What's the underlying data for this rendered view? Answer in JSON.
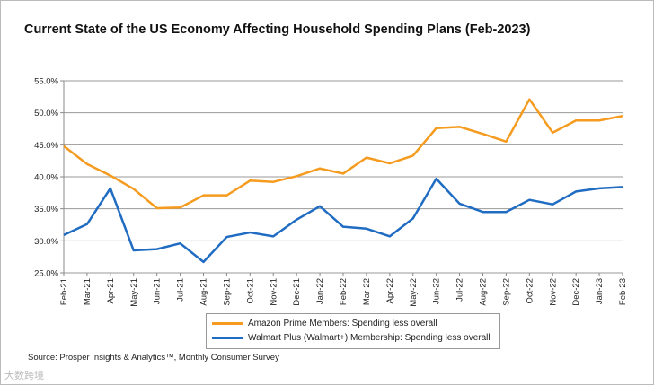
{
  "chart_data": {
    "type": "line",
    "title": "Current State of the US Economy Affecting Household Spending Plans (Feb-2023)",
    "categories": [
      "Feb-21",
      "Mar-21",
      "Apr-21",
      "May-21",
      "Jun-21",
      "Jul-21",
      "Aug-21",
      "Sep-21",
      "Oct-21",
      "Nov-21",
      "Dec-21",
      "Jan-22",
      "Feb-22",
      "Mar-22",
      "Apr-22",
      "May-22",
      "Jun-22",
      "Jul-22",
      "Aug-22",
      "Sep-22",
      "Oct-22",
      "Nov-22",
      "Dec-22",
      "Jan-23",
      "Feb-23"
    ],
    "yticks": [
      "25.0%",
      "30.0%",
      "35.0%",
      "40.0%",
      "45.0%",
      "50.0%",
      "55.0%"
    ],
    "ylim": [
      25,
      55
    ],
    "grid": true,
    "legend_placement": "bottom",
    "series": [
      {
        "name": "Amazon Prime Members: Spending less overall",
        "color": "#F59B1F",
        "values": [
          44.8,
          42.0,
          40.2,
          38.1,
          35.1,
          35.2,
          37.1,
          37.1,
          39.4,
          39.2,
          40.1,
          41.3,
          40.5,
          43.0,
          42.1,
          43.3,
          47.6,
          47.8,
          46.7,
          45.5,
          52.1,
          46.9,
          48.8,
          48.8,
          49.5
        ]
      },
      {
        "name": "Walmart Plus (Walmart+) Membership: Spending less overall",
        "color": "#1F6CC2",
        "values": [
          30.9,
          32.6,
          38.2,
          28.5,
          28.7,
          29.6,
          26.7,
          30.6,
          31.3,
          30.7,
          33.3,
          35.4,
          32.2,
          31.9,
          30.7,
          33.5,
          39.7,
          35.8,
          34.5,
          34.5,
          36.4,
          35.7,
          37.7,
          38.2,
          38.4
        ]
      }
    ]
  },
  "source": "Source: Prosper Insights & Analytics™, Monthly Consumer Survey",
  "watermark": "大数跨境"
}
